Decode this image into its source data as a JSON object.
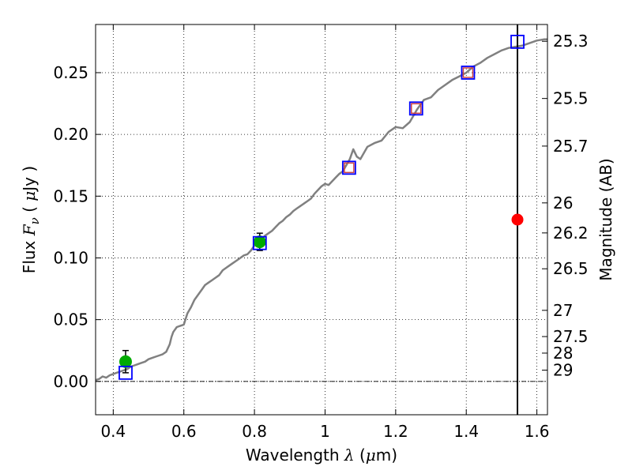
{
  "chart_data": {
    "type": "line",
    "xlabel_parts": [
      "Wavelength  ",
      "λ",
      " (",
      "μ",
      "m)"
    ],
    "ylabel_parts": [
      "Flux  ",
      "F",
      "ν",
      "  ( ",
      "μ",
      "Jy )"
    ],
    "y2label": "Magnitude (AB)",
    "xlim": [
      0.35,
      1.63
    ],
    "ylim": [
      -0.027,
      0.289
    ],
    "grid": true,
    "x_ticks": [
      0.4,
      0.6,
      0.8,
      1,
      1.2,
      1.4,
      1.6
    ],
    "x_tick_labels": [
      "0.4",
      "0.6",
      "0.8",
      "1",
      "1.2",
      "1.4",
      "1.6"
    ],
    "y_ticks": [
      0.0,
      0.05,
      0.1,
      0.15,
      0.2,
      0.25
    ],
    "y_tick_labels": [
      "0.00",
      "0.05",
      "0.10",
      "0.15",
      "0.20",
      "0.25"
    ],
    "mag_ticks": [
      25.3,
      25.5,
      25.7,
      26,
      26.2,
      26.5,
      27,
      27.5,
      28,
      29
    ],
    "mag_tick_labels": [
      "25.3",
      "25.5",
      "25.7",
      "26",
      "26.2",
      "26.5",
      "27",
      "27.5",
      "28",
      "29"
    ],
    "vertical_line_x": 1.545,
    "series": [
      {
        "kind": "sed_model",
        "color": "#808080",
        "x": [
          0.35,
          0.36,
          0.37,
          0.38,
          0.39,
          0.4,
          0.41,
          0.42,
          0.43,
          0.44,
          0.45,
          0.46,
          0.47,
          0.48,
          0.49,
          0.5,
          0.51,
          0.52,
          0.53,
          0.54,
          0.55,
          0.56,
          0.565,
          0.57,
          0.58,
          0.59,
          0.6,
          0.61,
          0.62,
          0.63,
          0.64,
          0.65,
          0.66,
          0.67,
          0.68,
          0.69,
          0.7,
          0.71,
          0.72,
          0.73,
          0.74,
          0.75,
          0.76,
          0.77,
          0.78,
          0.79,
          0.8,
          0.81,
          0.82,
          0.83,
          0.84,
          0.85,
          0.86,
          0.87,
          0.88,
          0.89,
          0.9,
          0.91,
          0.92,
          0.93,
          0.94,
          0.95,
          0.96,
          0.97,
          0.98,
          0.99,
          1.0,
          1.01,
          1.02,
          1.03,
          1.04,
          1.05,
          1.06,
          1.07,
          1.08,
          1.09,
          1.1,
          1.12,
          1.14,
          1.16,
          1.18,
          1.2,
          1.22,
          1.24,
          1.26,
          1.28,
          1.3,
          1.32,
          1.34,
          1.36,
          1.38,
          1.4,
          1.42,
          1.44,
          1.46,
          1.48,
          1.5,
          1.52,
          1.54,
          1.56,
          1.58,
          1.6,
          1.62,
          1.63
        ],
        "y": [
          0.001,
          0.002,
          0.004,
          0.003,
          0.005,
          0.006,
          0.007,
          0.008,
          0.009,
          0.01,
          0.012,
          0.013,
          0.014,
          0.015,
          0.016,
          0.018,
          0.019,
          0.02,
          0.021,
          0.022,
          0.024,
          0.03,
          0.036,
          0.04,
          0.044,
          0.045,
          0.046,
          0.055,
          0.06,
          0.066,
          0.07,
          0.074,
          0.078,
          0.08,
          0.082,
          0.084,
          0.086,
          0.09,
          0.092,
          0.094,
          0.096,
          0.098,
          0.1,
          0.102,
          0.103,
          0.106,
          0.11,
          0.112,
          0.115,
          0.118,
          0.12,
          0.122,
          0.125,
          0.128,
          0.13,
          0.133,
          0.135,
          0.138,
          0.14,
          0.142,
          0.144,
          0.146,
          0.148,
          0.152,
          0.155,
          0.158,
          0.16,
          0.159,
          0.162,
          0.165,
          0.168,
          0.17,
          0.175,
          0.18,
          0.188,
          0.182,
          0.18,
          0.19,
          0.193,
          0.195,
          0.202,
          0.206,
          0.205,
          0.21,
          0.22,
          0.228,
          0.23,
          0.236,
          0.24,
          0.244,
          0.247,
          0.25,
          0.255,
          0.258,
          0.262,
          0.265,
          0.268,
          0.27,
          0.271,
          0.272,
          0.274,
          0.276,
          0.277,
          0.277
        ]
      },
      {
        "kind": "observed_points",
        "color": "#00aa00",
        "x": [
          0.435,
          0.815
        ],
        "y": [
          0.016,
          0.113
        ],
        "yerr": [
          0.009,
          0.007
        ]
      },
      {
        "kind": "model_photometry_squares",
        "color": "#0000ff",
        "x": [
          0.435,
          0.815,
          1.068,
          1.258,
          1.405,
          1.545
        ],
        "y": [
          0.007,
          0.112,
          0.173,
          0.221,
          0.25,
          0.275
        ]
      },
      {
        "kind": "inner_squares",
        "color": "#cc4444",
        "x": [
          1.068,
          1.258,
          1.405
        ],
        "y": [
          0.173,
          0.221,
          0.25
        ]
      },
      {
        "kind": "highlight_point",
        "color": "#ff0000",
        "x": [
          1.545
        ],
        "y": [
          0.131
        ]
      }
    ]
  }
}
